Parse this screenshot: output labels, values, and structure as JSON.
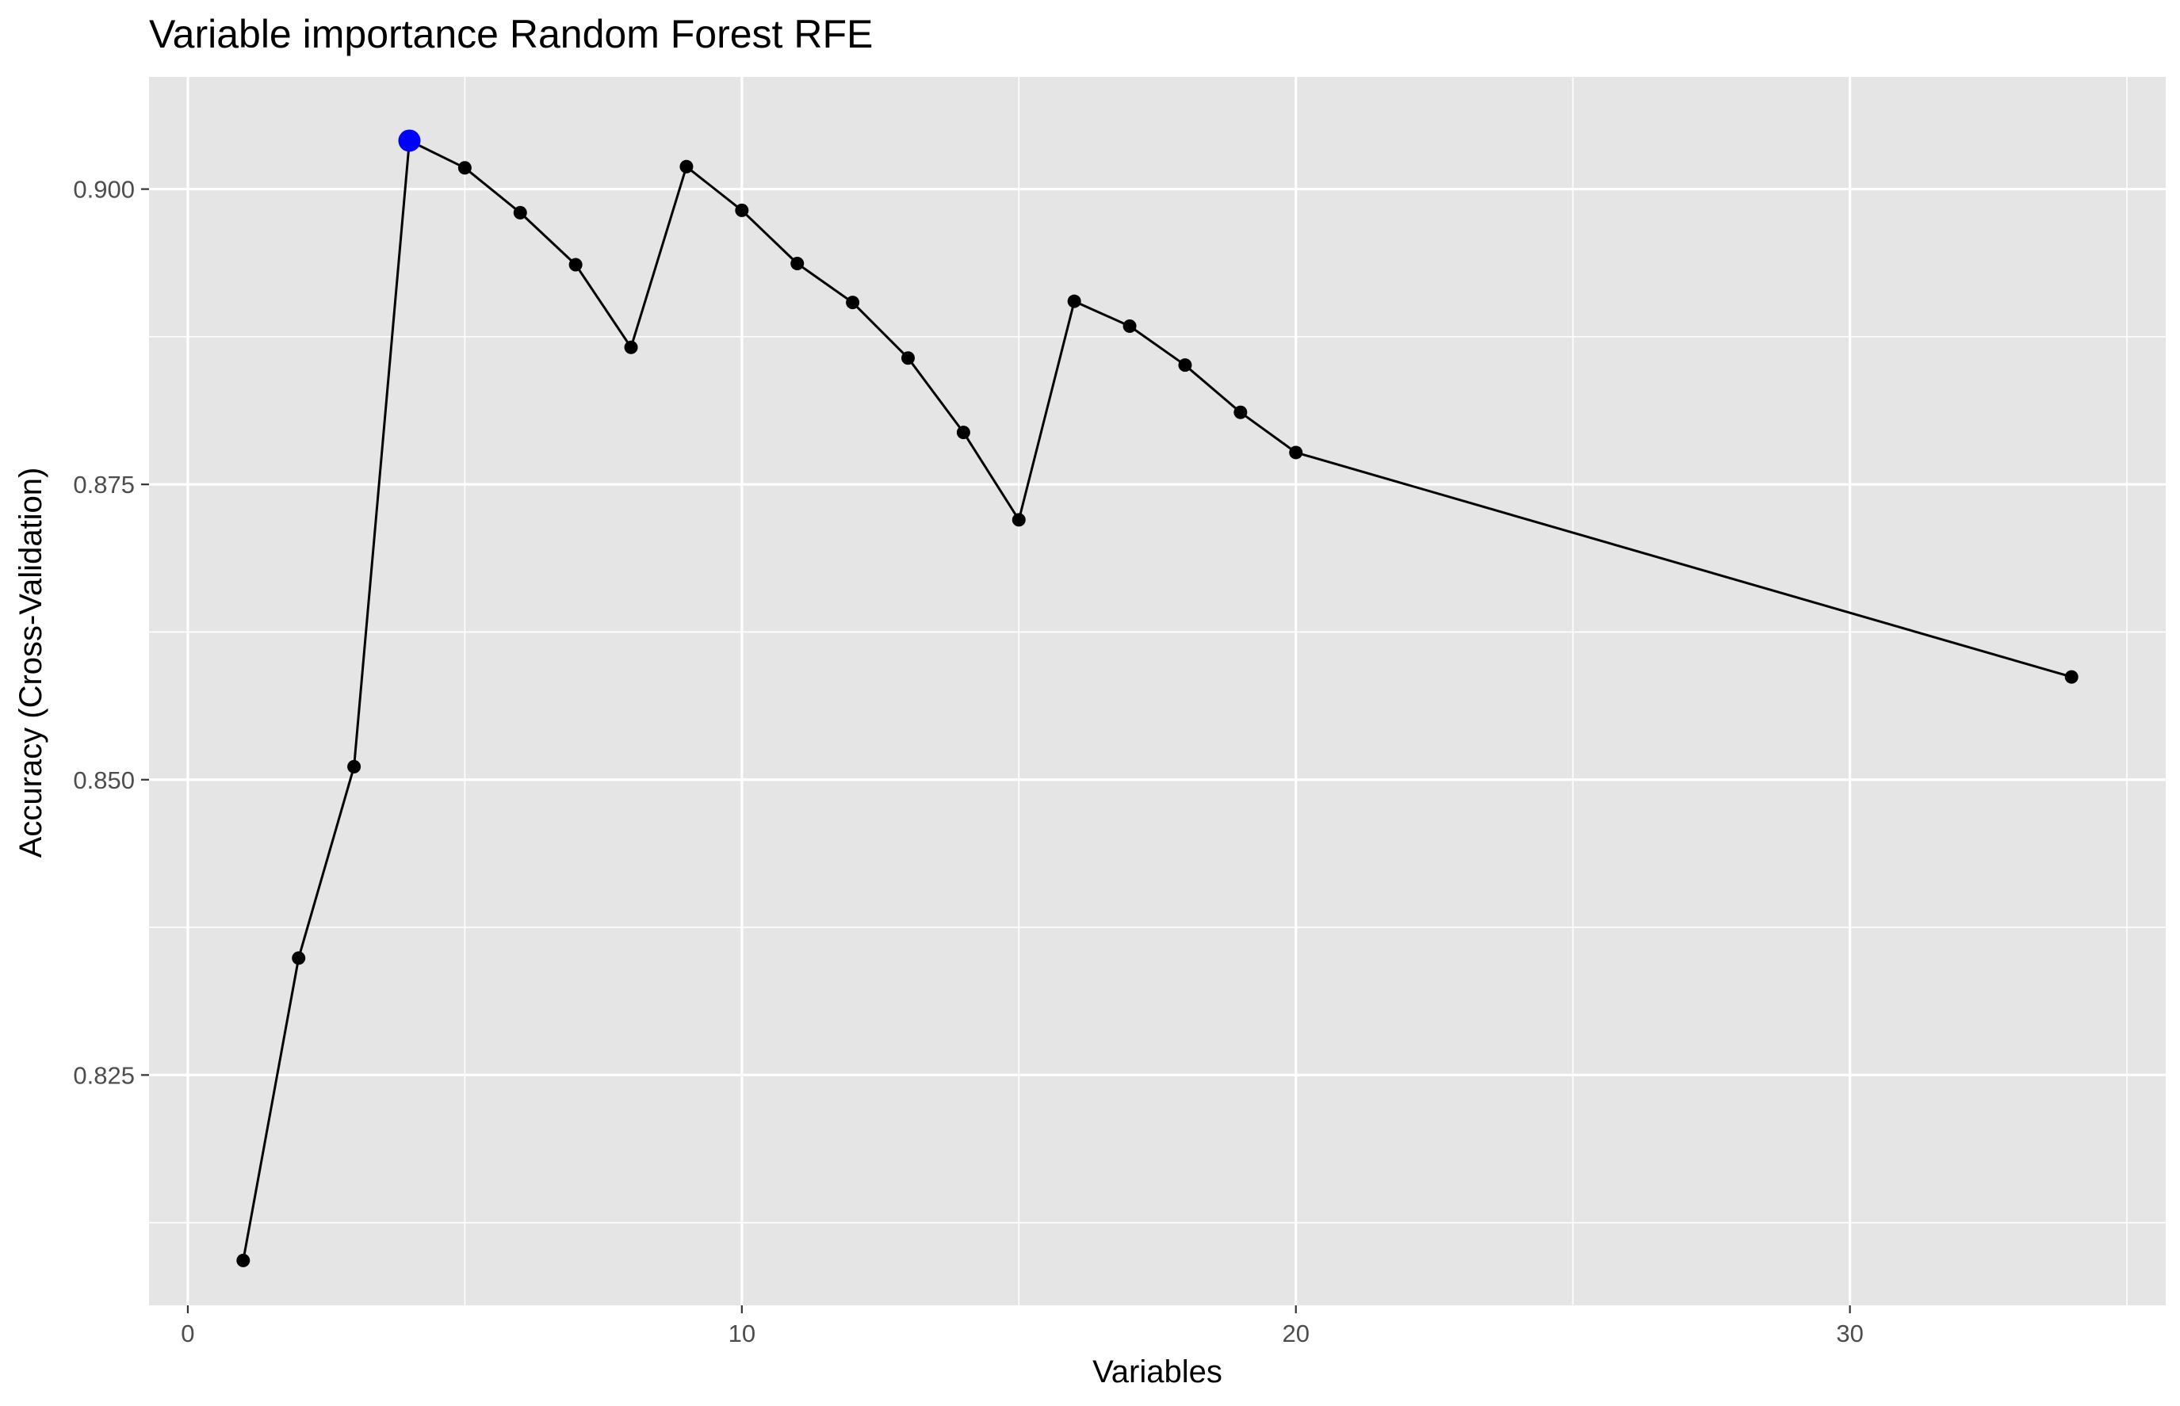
{
  "chart_data": {
    "type": "line",
    "title": "Variable importance Random Forest RFE",
    "xlabel": "Variables",
    "ylabel": "Accuracy (Cross-Validation)",
    "xlim": [
      -0.7,
      35.7
    ],
    "ylim": [
      0.8055,
      0.9095
    ],
    "x_ticks": [
      0,
      10,
      20,
      30
    ],
    "x_tick_labels": [
      "0",
      "10",
      "20",
      "30"
    ],
    "x_minor_ticks": [
      5,
      15,
      25,
      35
    ],
    "y_ticks": [
      0.825,
      0.85,
      0.875,
      0.9
    ],
    "y_tick_labels": [
      "0.825",
      "0.850",
      "0.875",
      "0.900"
    ],
    "y_minor_ticks": [
      0.8125,
      0.8375,
      0.8625,
      0.8875
    ],
    "grid": true,
    "legend": "none",
    "series": [
      {
        "x": [
          1,
          2,
          3,
          4,
          5,
          6,
          7,
          8,
          9,
          10,
          11,
          12,
          13,
          14,
          15,
          16,
          17,
          18,
          19,
          20,
          34
        ],
        "y": [
          0.8093,
          0.8349,
          0.8511,
          0.9041,
          0.9018,
          0.898,
          0.8936,
          0.8866,
          0.9019,
          0.8982,
          0.8937,
          0.8904,
          0.8857,
          0.8794,
          0.872,
          0.8905,
          0.8884,
          0.8851,
          0.8811,
          0.8777,
          0.8587
        ],
        "color": "#000000"
      }
    ],
    "highlight_point": {
      "x": 4,
      "y": 0.9041,
      "color": "#0000ff"
    },
    "colors": {
      "panel_background": "#e5e5e5",
      "grid": "#ffffff",
      "line": "#000000",
      "point": "#000000",
      "highlight": "#0000ff",
      "tick_text": "#4d4d4d",
      "axis_tick": "#333333"
    }
  }
}
